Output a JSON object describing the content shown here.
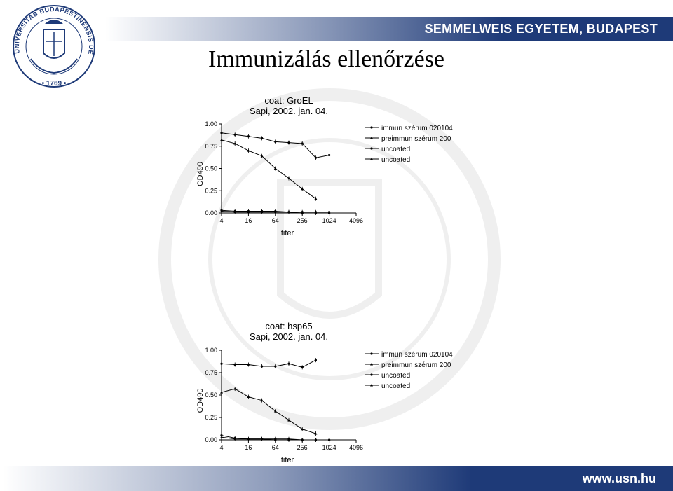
{
  "slide": {
    "banner_text": "SEMMELWEIS EGYETEM, BUDAPEST",
    "title": "Immunizálás ellenőrzése",
    "footer_text": "www.usn.hu",
    "logo_text_top": "UNIVERSITAS BUDAPESTINENSIS DE SEMMELWEIS NOMINATA",
    "logo_year": "• 1769 •",
    "colors": {
      "brand_blue": "#1e3a78",
      "series": "#000000"
    }
  },
  "chart_data": [
    {
      "type": "line",
      "title": "coat: GroEL",
      "subtitle": "Sapi, 2002. jan. 04.",
      "xlabel": "titer",
      "ylabel": "OD490",
      "x_scale": "log2",
      "x": [
        4,
        8,
        16,
        32,
        64,
        128,
        256,
        512,
        1024,
        2048
      ],
      "x_ticks": [
        "4",
        "16",
        "64",
        "256",
        "1024",
        "4096"
      ],
      "y_ticks": [
        "0.00",
        "0.25",
        "0.50",
        "0.75",
        "1.00"
      ],
      "ylim": [
        0,
        1.0
      ],
      "xlim": [
        4,
        4096
      ],
      "legend_position": "right",
      "series": [
        {
          "name": "immun szérum 020104",
          "values": [
            0.9,
            0.88,
            0.86,
            0.84,
            0.8,
            0.79,
            0.78,
            0.62,
            0.65,
            null
          ]
        },
        {
          "name": "preimmun szérum 200",
          "values": [
            0.82,
            0.78,
            0.7,
            0.64,
            0.5,
            0.39,
            0.27,
            0.16,
            null,
            null
          ]
        },
        {
          "name": "uncoated",
          "values": [
            0.03,
            0.02,
            0.02,
            0.02,
            0.02,
            0.01,
            0.01,
            0.01,
            0.01,
            null
          ]
        },
        {
          "name": "uncoated",
          "values": [
            0.02,
            0.01,
            0.01,
            0.01,
            0.01,
            0.01,
            0.0,
            0.0,
            0.0,
            null
          ]
        }
      ]
    },
    {
      "type": "line",
      "title": "coat: hsp65",
      "subtitle": "Sapi, 2002. jan. 04.",
      "xlabel": "titer",
      "ylabel": "OD490",
      "x_scale": "log2",
      "x": [
        4,
        8,
        16,
        32,
        64,
        128,
        256,
        512,
        1024,
        2048
      ],
      "x_ticks": [
        "4",
        "16",
        "64",
        "256",
        "1024",
        "4096"
      ],
      "y_ticks": [
        "0.00",
        "0.25",
        "0.50",
        "0.75",
        "1.00"
      ],
      "ylim": [
        0,
        1.0
      ],
      "xlim": [
        4,
        4096
      ],
      "legend_position": "right",
      "series": [
        {
          "name": "immun szérum 020104",
          "values": [
            0.85,
            0.84,
            0.84,
            0.82,
            0.82,
            0.85,
            0.81,
            0.89,
            null,
            null
          ]
        },
        {
          "name": "preimmun szérum 200",
          "values": [
            0.53,
            0.57,
            0.48,
            0.44,
            0.32,
            0.22,
            0.12,
            0.07,
            null,
            null
          ]
        },
        {
          "name": "uncoated",
          "values": [
            0.05,
            0.02,
            0.01,
            0.01,
            0.01,
            0.01,
            0.0,
            0.0,
            0.0,
            null
          ]
        },
        {
          "name": "uncoated",
          "values": [
            0.03,
            0.01,
            0.01,
            0.01,
            0.0,
            0.0,
            0.0,
            0.0,
            0.0,
            null
          ]
        }
      ]
    }
  ]
}
